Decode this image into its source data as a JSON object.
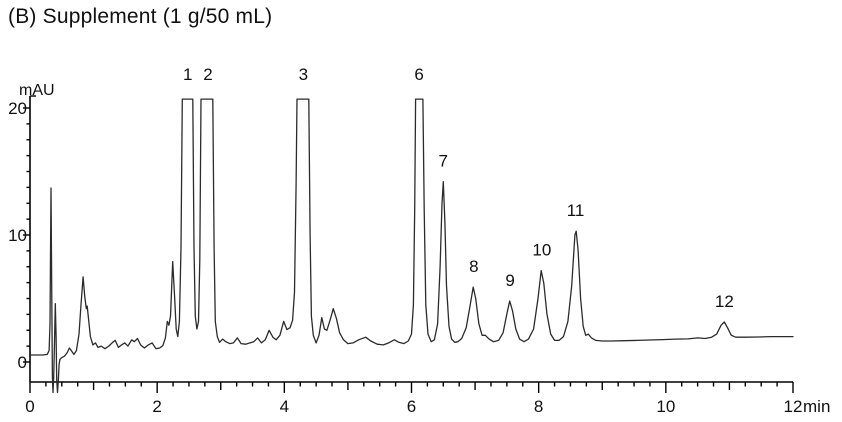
{
  "title": "(B) Supplement (1 g/50 mL)",
  "colors": {
    "background": "#ffffff",
    "trace": "#2b2b2b",
    "axis": "#000000",
    "text": "#111111"
  },
  "chart_data": {
    "type": "line",
    "title": "(B) Supplement (1 g/50 mL)",
    "ylabel": "mAU",
    "xlabel": "min",
    "xlim": [
      0,
      12
    ],
    "ylim": [
      -2.5,
      22
    ],
    "grid": false,
    "legend": "none",
    "y_major_ticks": [
      0,
      10,
      20
    ],
    "y_minor_tick_step": 1.25,
    "x_major_ticks": [
      0,
      2,
      4,
      6,
      8,
      10,
      12
    ],
    "x_medium_tick_step": 1,
    "x_minor_tick_step": 0.25,
    "clip_level_mAU": 20.7,
    "peaks": [
      {
        "label": "1",
        "t": 2.48,
        "apex_mAU": 20.7,
        "clipped": true
      },
      {
        "label": "2",
        "t": 2.8,
        "apex_mAU": 20.7,
        "clipped": true
      },
      {
        "label": "3",
        "t": 4.3,
        "apex_mAU": 20.7,
        "clipped": true
      },
      {
        "label": "6",
        "t": 6.12,
        "apex_mAU": 20.7,
        "clipped": true
      },
      {
        "label": "7",
        "t": 6.5,
        "apex_mAU": 14.2,
        "clipped": false
      },
      {
        "label": "8",
        "t": 6.98,
        "apex_mAU": 5.9,
        "clipped": false
      },
      {
        "label": "9",
        "t": 7.55,
        "apex_mAU": 4.8,
        "clipped": false
      },
      {
        "label": "10",
        "t": 8.05,
        "apex_mAU": 7.2,
        "clipped": false
      },
      {
        "label": "11",
        "t": 8.58,
        "apex_mAU": 10.3,
        "clipped": false
      },
      {
        "label": "12",
        "t": 10.92,
        "apex_mAU": 3.15,
        "clipped": false
      }
    ],
    "trace_points_t_mAU": [
      [
        0.0,
        0.55
      ],
      [
        0.1,
        0.55
      ],
      [
        0.2,
        0.55
      ],
      [
        0.27,
        0.6
      ],
      [
        0.3,
        0.9
      ],
      [
        0.315,
        3.0
      ],
      [
        0.33,
        13.7
      ],
      [
        0.342,
        6.0
      ],
      [
        0.352,
        -1.2
      ],
      [
        0.362,
        -2.4
      ],
      [
        0.372,
        -1.2
      ],
      [
        0.385,
        1.5
      ],
      [
        0.398,
        4.6
      ],
      [
        0.41,
        2.0
      ],
      [
        0.42,
        -1.4
      ],
      [
        0.432,
        -2.4
      ],
      [
        0.445,
        -1.5
      ],
      [
        0.458,
        -0.2
      ],
      [
        0.47,
        0.2
      ],
      [
        0.5,
        0.35
      ],
      [
        0.54,
        0.45
      ],
      [
        0.58,
        0.7
      ],
      [
        0.62,
        1.1
      ],
      [
        0.65,
        0.9
      ],
      [
        0.69,
        0.6
      ],
      [
        0.73,
        0.9
      ],
      [
        0.77,
        2.2
      ],
      [
        0.8,
        4.4
      ],
      [
        0.835,
        6.7
      ],
      [
        0.86,
        5.2
      ],
      [
        0.885,
        4.2
      ],
      [
        0.9,
        4.4
      ],
      [
        0.925,
        3.2
      ],
      [
        0.95,
        2.0
      ],
      [
        0.99,
        1.35
      ],
      [
        1.03,
        1.5
      ],
      [
        1.07,
        1.15
      ],
      [
        1.12,
        1.25
      ],
      [
        1.18,
        1.05
      ],
      [
        1.24,
        1.25
      ],
      [
        1.3,
        1.55
      ],
      [
        1.34,
        1.7
      ],
      [
        1.39,
        1.15
      ],
      [
        1.44,
        1.35
      ],
      [
        1.49,
        1.5
      ],
      [
        1.54,
        1.25
      ],
      [
        1.6,
        1.75
      ],
      [
        1.64,
        1.6
      ],
      [
        1.69,
        1.85
      ],
      [
        1.74,
        1.35
      ],
      [
        1.8,
        1.1
      ],
      [
        1.86,
        1.35
      ],
      [
        1.92,
        1.5
      ],
      [
        1.98,
        1.05
      ],
      [
        2.04,
        1.1
      ],
      [
        2.09,
        1.3
      ],
      [
        2.13,
        1.9
      ],
      [
        2.16,
        3.2
      ],
      [
        2.185,
        2.9
      ],
      [
        2.21,
        3.6
      ],
      [
        2.245,
        7.9
      ],
      [
        2.275,
        5.0
      ],
      [
        2.3,
        2.6
      ],
      [
        2.325,
        2.0
      ],
      [
        2.35,
        3.2
      ],
      [
        2.375,
        9.0
      ],
      [
        2.395,
        20.7
      ],
      [
        2.56,
        20.7
      ],
      [
        2.58,
        9.0
      ],
      [
        2.6,
        3.6
      ],
      [
        2.625,
        2.6
      ],
      [
        2.65,
        3.2
      ],
      [
        2.67,
        8.0
      ],
      [
        2.69,
        20.7
      ],
      [
        2.875,
        20.7
      ],
      [
        2.895,
        9.0
      ],
      [
        2.915,
        3.2
      ],
      [
        2.945,
        2.0
      ],
      [
        2.98,
        1.55
      ],
      [
        3.03,
        1.8
      ],
      [
        3.08,
        1.6
      ],
      [
        3.14,
        1.45
      ],
      [
        3.2,
        1.5
      ],
      [
        3.26,
        1.9
      ],
      [
        3.32,
        1.45
      ],
      [
        3.39,
        1.4
      ],
      [
        3.46,
        1.5
      ],
      [
        3.52,
        1.6
      ],
      [
        3.58,
        1.9
      ],
      [
        3.64,
        1.5
      ],
      [
        3.7,
        1.75
      ],
      [
        3.76,
        2.5
      ],
      [
        3.82,
        1.95
      ],
      [
        3.87,
        1.75
      ],
      [
        3.93,
        2.1
      ],
      [
        3.99,
        3.2
      ],
      [
        4.04,
        2.55
      ],
      [
        4.09,
        2.7
      ],
      [
        4.13,
        3.3
      ],
      [
        4.16,
        5.5
      ],
      [
        4.185,
        14.0
      ],
      [
        4.2,
        20.7
      ],
      [
        4.385,
        20.7
      ],
      [
        4.405,
        10.0
      ],
      [
        4.425,
        3.6
      ],
      [
        4.455,
        2.1
      ],
      [
        4.5,
        1.5
      ],
      [
        4.545,
        2.1
      ],
      [
        4.59,
        3.5
      ],
      [
        4.63,
        2.6
      ],
      [
        4.67,
        2.5
      ],
      [
        4.72,
        3.3
      ],
      [
        4.77,
        4.2
      ],
      [
        4.82,
        3.4
      ],
      [
        4.87,
        2.3
      ],
      [
        4.93,
        1.75
      ],
      [
        5.0,
        1.45
      ],
      [
        5.08,
        1.5
      ],
      [
        5.17,
        1.75
      ],
      [
        5.28,
        1.95
      ],
      [
        5.36,
        1.65
      ],
      [
        5.46,
        1.4
      ],
      [
        5.56,
        1.35
      ],
      [
        5.64,
        1.5
      ],
      [
        5.73,
        1.75
      ],
      [
        5.8,
        1.55
      ],
      [
        5.88,
        1.45
      ],
      [
        5.95,
        1.65
      ],
      [
        6.0,
        2.2
      ],
      [
        6.03,
        4.5
      ],
      [
        6.05,
        12.0
      ],
      [
        6.065,
        20.7
      ],
      [
        6.18,
        20.7
      ],
      [
        6.2,
        12.0
      ],
      [
        6.225,
        4.5
      ],
      [
        6.26,
        2.2
      ],
      [
        6.31,
        1.6
      ],
      [
        6.36,
        1.75
      ],
      [
        6.41,
        3.0
      ],
      [
        6.45,
        7.5
      ],
      [
        6.48,
        12.5
      ],
      [
        6.5,
        14.2
      ],
      [
        6.525,
        11.0
      ],
      [
        6.55,
        6.0
      ],
      [
        6.59,
        2.8
      ],
      [
        6.63,
        1.8
      ],
      [
        6.68,
        1.55
      ],
      [
        6.73,
        1.6
      ],
      [
        6.79,
        1.85
      ],
      [
        6.86,
        2.7
      ],
      [
        6.92,
        4.4
      ],
      [
        6.97,
        5.9
      ],
      [
        7.01,
        5.0
      ],
      [
        7.06,
        3.0
      ],
      [
        7.11,
        2.1
      ],
      [
        7.16,
        2.1
      ],
      [
        7.22,
        1.8
      ],
      [
        7.29,
        1.6
      ],
      [
        7.37,
        1.7
      ],
      [
        7.44,
        2.3
      ],
      [
        7.5,
        3.8
      ],
      [
        7.545,
        4.8
      ],
      [
        7.59,
        4.0
      ],
      [
        7.64,
        2.6
      ],
      [
        7.7,
        1.8
      ],
      [
        7.77,
        1.6
      ],
      [
        7.84,
        1.8
      ],
      [
        7.92,
        2.6
      ],
      [
        7.99,
        5.0
      ],
      [
        8.04,
        7.2
      ],
      [
        8.08,
        6.2
      ],
      [
        8.13,
        3.8
      ],
      [
        8.19,
        2.2
      ],
      [
        8.25,
        1.7
      ],
      [
        8.32,
        1.7
      ],
      [
        8.39,
        2.0
      ],
      [
        8.46,
        3.2
      ],
      [
        8.52,
        6.0
      ],
      [
        8.57,
        10.0
      ],
      [
        8.59,
        10.3
      ],
      [
        8.62,
        8.8
      ],
      [
        8.66,
        5.0
      ],
      [
        8.7,
        2.8
      ],
      [
        8.74,
        2.1
      ],
      [
        8.78,
        2.2
      ],
      [
        8.83,
        1.9
      ],
      [
        8.9,
        1.7
      ],
      [
        9.0,
        1.65
      ],
      [
        9.15,
        1.65
      ],
      [
        9.35,
        1.68
      ],
      [
        9.55,
        1.7
      ],
      [
        9.75,
        1.73
      ],
      [
        9.95,
        1.76
      ],
      [
        10.15,
        1.8
      ],
      [
        10.35,
        1.82
      ],
      [
        10.5,
        1.9
      ],
      [
        10.62,
        1.85
      ],
      [
        10.72,
        1.95
      ],
      [
        10.8,
        2.2
      ],
      [
        10.87,
        2.9
      ],
      [
        10.92,
        3.15
      ],
      [
        10.97,
        2.7
      ],
      [
        11.03,
        2.1
      ],
      [
        11.1,
        1.95
      ],
      [
        11.25,
        1.95
      ],
      [
        11.45,
        1.97
      ],
      [
        11.65,
        2.0
      ],
      [
        11.85,
        2.0
      ],
      [
        12.0,
        2.0
      ]
    ]
  }
}
